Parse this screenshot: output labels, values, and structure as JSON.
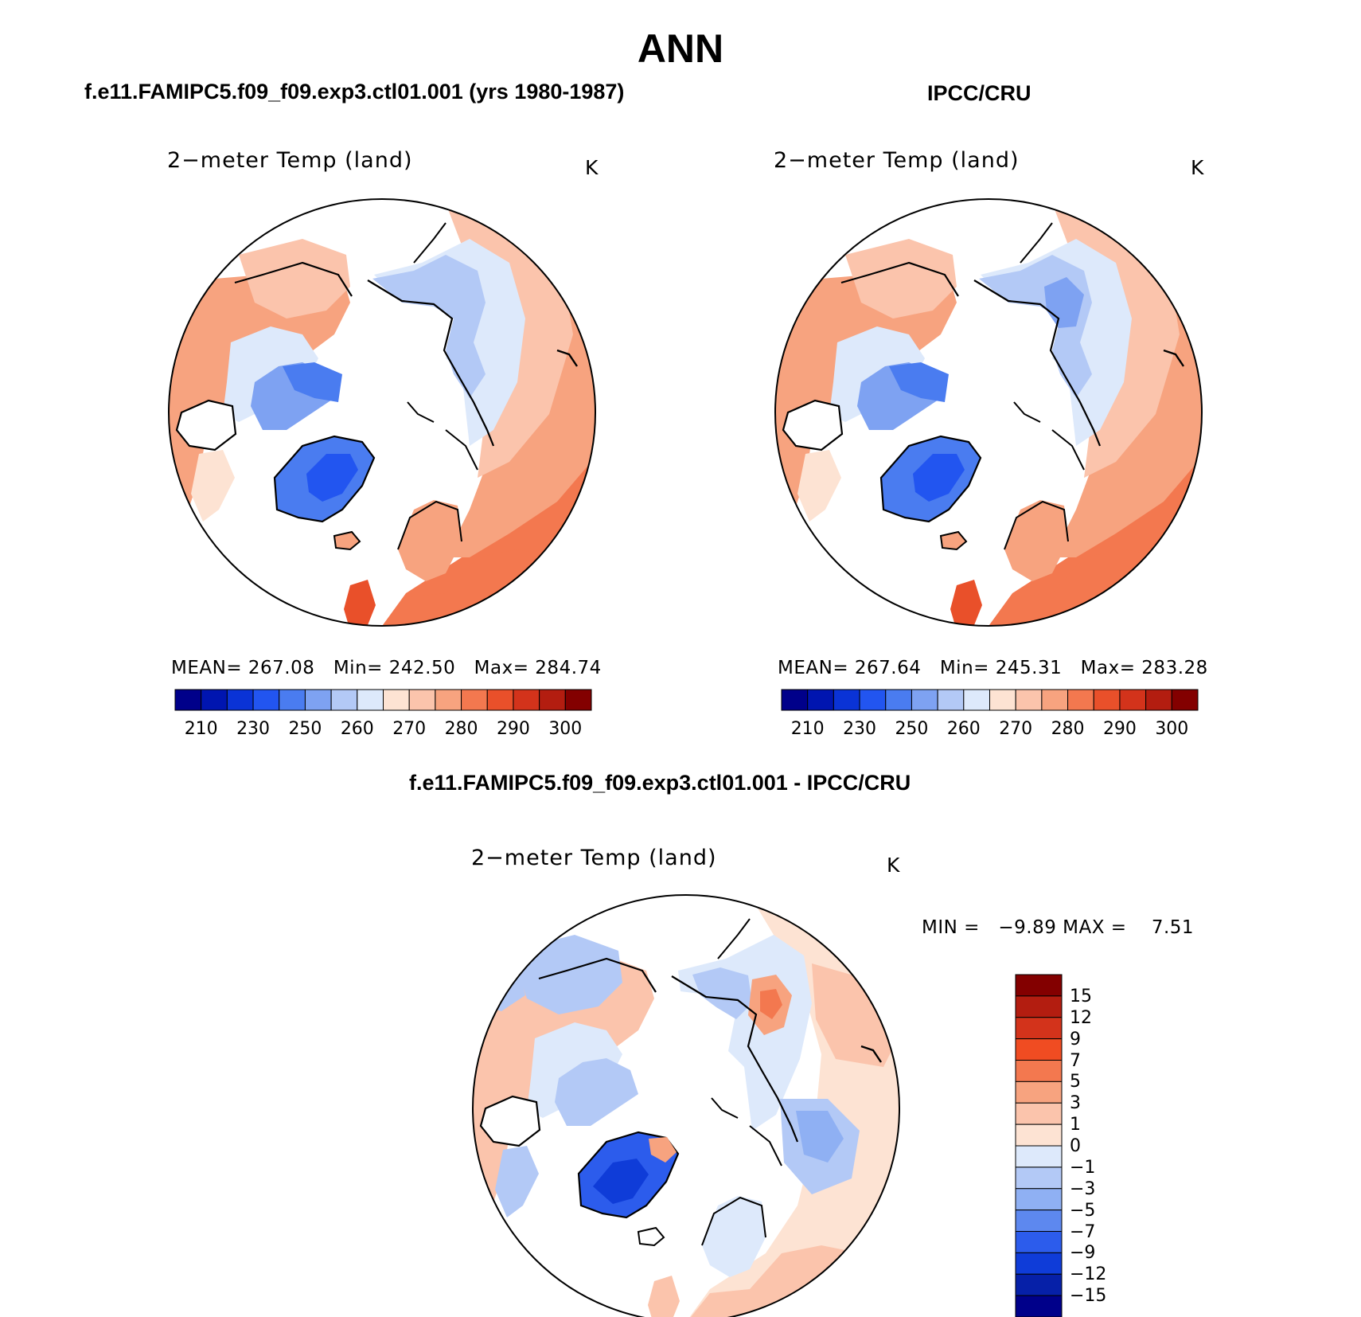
{
  "figure": {
    "title": "ANN",
    "colors": {
      "ocean": "#ffffff",
      "coast": "#000000"
    }
  },
  "panels": [
    {
      "id": "model",
      "case_title": "f.e11.FAMIPC5.f09_f09.exp3.ctl01.001 (yrs 1980-1987)",
      "variable": "2−meter Temp (land)",
      "units": "K",
      "stats": {
        "mean_label": "MEAN=",
        "mean": "267.08",
        "min_label": "Min=",
        "min": "242.50",
        "max_label": "Max=",
        "max": "284.74"
      },
      "colorbar_ticks": [
        "210",
        "230",
        "250",
        "260",
        "270",
        "280",
        "290",
        "300"
      ]
    },
    {
      "id": "obs",
      "case_title": "IPCC/CRU",
      "variable": "2−meter Temp (land)",
      "units": "K",
      "stats": {
        "mean_label": "MEAN=",
        "mean": "267.64",
        "min_label": "Min=",
        "min": "245.31",
        "max_label": "Max=",
        "max": "283.28"
      },
      "colorbar_ticks": [
        "210",
        "230",
        "250",
        "260",
        "270",
        "280",
        "290",
        "300"
      ]
    },
    {
      "id": "diff",
      "case_title": "f.e11.FAMIPC5.f09_f09.exp3.ctl01.001 - IPCC/CRU",
      "variable": "2−meter Temp (land)",
      "units": "K",
      "stats": {
        "min_label": "MIN =",
        "min": "−9.89",
        "max_label": "MAX =",
        "max": "7.51"
      },
      "colorbar_ticks": [
        "15",
        "12",
        "9",
        "7",
        "5",
        "3",
        "1",
        "0",
        "−1",
        "−3",
        "−5",
        "−7",
        "−9",
        "−12",
        "−15"
      ]
    }
  ],
  "scales": {
    "absolute_colors": [
      "#00008a",
      "#0015b0",
      "#0a33d6",
      "#2255f0",
      "#4a7cf0",
      "#7ea2f2",
      "#b3c9f6",
      "#dde9fb",
      "#fde3d3",
      "#fbc4ac",
      "#f7a37f",
      "#f3784f",
      "#e9502a",
      "#d3331b",
      "#b31d10",
      "#830000"
    ],
    "diff_colors": [
      "#830000",
      "#b31d10",
      "#d3331b",
      "#f04c22",
      "#f3784f",
      "#f7a37f",
      "#fbc4ac",
      "#fde3d3",
      "#dde9fb",
      "#b3c9f6",
      "#8fb0f3",
      "#5d88ef",
      "#2c5cec",
      "#0f3cd8",
      "#0620a8",
      "#00008a"
    ]
  }
}
